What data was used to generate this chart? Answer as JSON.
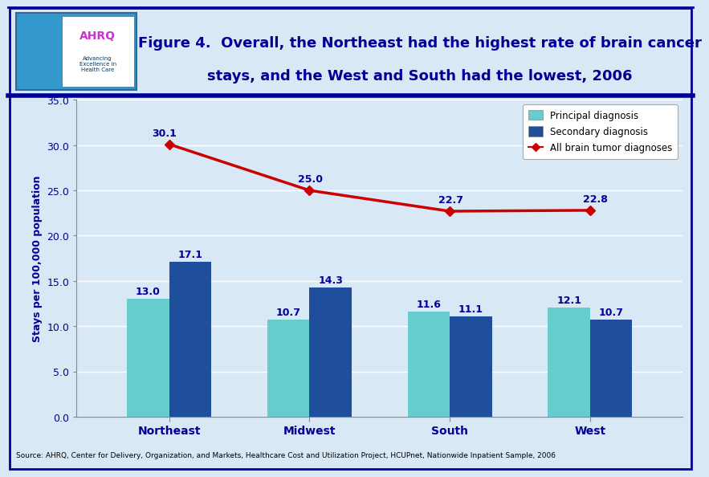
{
  "categories": [
    "Northeast",
    "Midwest",
    "South",
    "West"
  ],
  "principal_diagnosis": [
    13.0,
    10.7,
    11.6,
    12.1
  ],
  "secondary_diagnosis": [
    17.1,
    14.3,
    11.1,
    10.7
  ],
  "all_brain_tumor": [
    30.1,
    25.0,
    22.7,
    22.8
  ],
  "principal_color": "#66CCCC",
  "secondary_color": "#1F4E9C",
  "line_color": "#CC0000",
  "background_color": "#D9E8F5",
  "plot_bg_color": "#D9E8F5",
  "title_line1": "Figure 4.  Overall, the Northeast had the highest rate of brain cancer",
  "title_line2": "stays, and the West and South had the lowest, 2006",
  "title_color": "#000099",
  "ylabel": "Stays per 100,000 population",
  "ylim": [
    0,
    35.0
  ],
  "yticks": [
    0.0,
    5.0,
    10.0,
    15.0,
    20.0,
    25.0,
    30.0,
    35.0
  ],
  "legend_labels": [
    "Principal diagnosis",
    "Secondary diagnosis",
    "All brain tumor diagnoses"
  ],
  "source_text": "Source: AHRQ, Center for Delivery, Organization, and Markets, Healthcare Cost and Utilization Project, HCUPnet, Nationwide Inpatient Sample, 2006",
  "bar_width": 0.3,
  "title_fontsize": 13,
  "label_fontsize": 9,
  "axis_label_color": "#000099",
  "tick_label_color": "#000099",
  "outer_border_color": "#000099",
  "header_bg": "#FFFFFF",
  "logo_border_color": "#336699",
  "logo_bg": "#3399CC",
  "ahrq_text_color": "#CC33CC",
  "advancing_text_color": "#003366"
}
